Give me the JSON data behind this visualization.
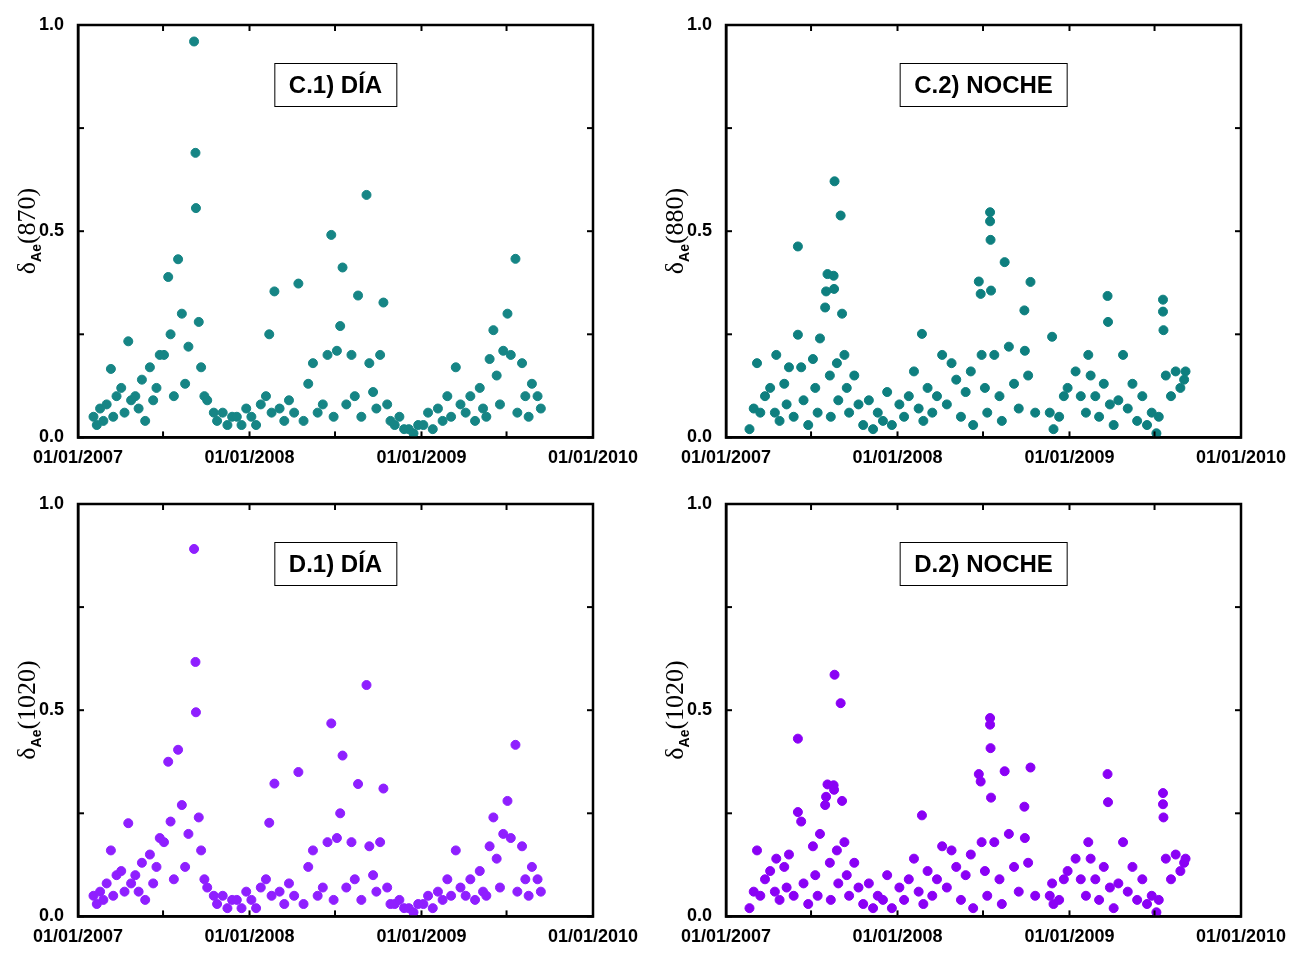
{
  "chart_data": [
    {
      "type": "scatter",
      "title": "C.1) DÍA",
      "ylabel": "δ$_{Ae}$(870)",
      "marker": "circle",
      "xlim": [
        "2007-01-01",
        "2010-01-01"
      ],
      "ylim": [
        0,
        1
      ],
      "xticks": [
        {
          "value": "2007-01-01",
          "label": "01/01/2007"
        },
        {
          "value": "2007-07-01",
          "label": null
        },
        {
          "value": "2008-01-01",
          "label": "01/01/2008"
        },
        {
          "value": "2008-07-01",
          "label": null
        },
        {
          "value": "2009-01-01",
          "label": "01/01/2009"
        },
        {
          "value": "2009-07-01",
          "label": null
        },
        {
          "value": "2010-01-01",
          "label": "01/01/2010"
        }
      ],
      "yticks": [
        {
          "value": 0,
          "label": "0.0"
        },
        {
          "value": 0.25,
          "label": null
        },
        {
          "value": 0.5,
          "label": "0.5"
        },
        {
          "value": 0.75,
          "label": null
        },
        {
          "value": 1,
          "label": "1.0"
        }
      ],
      "series": [
        {
          "color": "#168585",
          "x": [
            "2007-02-03",
            "2007-02-10",
            "2007-02-17",
            "2007-02-24",
            "2007-03-03",
            "2007-03-12",
            "2007-03-17",
            "2007-03-24",
            "2007-04-03",
            "2007-04-10",
            "2007-04-18",
            "2007-04-24",
            "2007-05-03",
            "2007-05-10",
            "2007-05-17",
            "2007-05-24",
            "2007-06-03",
            "2007-06-10",
            "2007-06-17",
            "2007-06-24",
            "2007-07-03",
            "2007-07-12",
            "2007-07-17",
            "2007-07-24",
            "2007-08-02",
            "2007-08-10",
            "2007-08-17",
            "2007-08-24",
            "2007-09-05",
            "2007-09-08",
            "2007-09-09",
            "2007-09-15",
            "2007-09-20",
            "2007-09-27",
            "2007-10-03",
            "2007-10-17",
            "2007-10-24",
            "2007-11-05",
            "2007-11-15",
            "2007-11-25",
            "2007-12-05",
            "2007-12-15",
            "2007-12-25",
            "2008-01-05",
            "2008-01-15",
            "2008-01-25",
            "2008-02-05",
            "2008-02-12",
            "2008-02-17",
            "2008-02-23",
            "2008-03-05",
            "2008-03-15",
            "2008-03-25",
            "2008-04-05",
            "2008-04-14",
            "2008-04-25",
            "2008-05-05",
            "2008-05-15",
            "2008-05-25",
            "2008-06-05",
            "2008-06-15",
            "2008-06-23",
            "2008-06-28",
            "2008-07-05",
            "2008-07-12",
            "2008-07-17",
            "2008-07-25",
            "2008-08-05",
            "2008-08-12",
            "2008-08-19",
            "2008-08-26",
            "2008-09-06",
            "2008-09-12",
            "2008-09-20",
            "2008-09-27",
            "2008-10-05",
            "2008-10-12",
            "2008-10-20",
            "2008-10-27",
            "2008-11-05",
            "2008-11-15",
            "2008-11-25",
            "2008-12-05",
            "2008-12-15",
            "2008-12-25",
            "2009-01-05",
            "2009-01-15",
            "2009-01-25",
            "2009-02-05",
            "2009-02-15",
            "2009-02-25",
            "2009-03-05",
            "2009-03-15",
            "2009-03-25",
            "2009-04-05",
            "2009-04-15",
            "2009-04-25",
            "2009-05-05",
            "2009-05-12",
            "2009-05-19",
            "2009-05-26",
            "2009-06-03",
            "2009-06-10",
            "2009-06-17",
            "2009-06-24",
            "2009-07-03",
            "2009-07-10",
            "2009-07-20",
            "2009-07-24",
            "2009-08-03",
            "2009-08-10",
            "2009-08-17",
            "2009-08-24",
            "2009-09-05",
            "2009-09-12"
          ],
          "values": [
            0.05,
            0.03,
            0.07,
            0.04,
            0.08,
            0.166,
            0.05,
            0.1,
            0.12,
            0.06,
            0.233,
            0.09,
            0.1,
            0.07,
            0.14,
            0.04,
            0.17,
            0.09,
            0.12,
            0.2,
            0.2,
            0.389,
            0.25,
            0.1,
            0.432,
            0.3,
            0.13,
            0.22,
            0.96,
            0.69,
            0.556,
            0.28,
            0.17,
            0.1,
            0.09,
            0.06,
            0.04,
            0.06,
            0.03,
            0.05,
            0.05,
            0.03,
            0.07,
            0.05,
            0.03,
            0.08,
            0.1,
            0.25,
            0.06,
            0.354,
            0.07,
            0.04,
            0.09,
            0.06,
            0.373,
            0.04,
            0.13,
            0.18,
            0.06,
            0.08,
            0.2,
            0.491,
            0.05,
            0.21,
            0.27,
            0.412,
            0.08,
            0.2,
            0.1,
            0.344,
            0.05,
            0.588,
            0.18,
            0.11,
            0.07,
            0.2,
            0.327,
            0.08,
            0.04,
            0.03,
            0.05,
            0.02,
            0.02,
            0.01,
            0.03,
            0.03,
            0.06,
            0.02,
            0.07,
            0.04,
            0.1,
            0.05,
            0.17,
            0.08,
            0.06,
            0.1,
            0.04,
            0.12,
            0.07,
            0.05,
            0.19,
            0.26,
            0.15,
            0.08,
            0.21,
            0.3,
            0.2,
            0.433,
            0.06,
            0.18,
            0.1,
            0.05,
            0.13,
            0.1,
            0.07
          ]
        }
      ]
    },
    {
      "type": "scatter",
      "title": "C.2) NOCHE",
      "ylabel": "δ$_{Ae}$(880)",
      "marker": "circle",
      "xlim": [
        "2007-01-01",
        "2010-01-01"
      ],
      "ylim": [
        0,
        1
      ],
      "xticks": [
        {
          "value": "2007-01-01",
          "label": "01/01/2007"
        },
        {
          "value": "2007-07-01",
          "label": null
        },
        {
          "value": "2008-01-01",
          "label": "01/01/2008"
        },
        {
          "value": "2008-07-01",
          "label": null
        },
        {
          "value": "2009-01-01",
          "label": "01/01/2009"
        },
        {
          "value": "2009-07-01",
          "label": null
        },
        {
          "value": "2010-01-01",
          "label": "01/01/2010"
        }
      ],
      "yticks": [
        {
          "value": 0,
          "label": "0.0"
        },
        {
          "value": 0.25,
          "label": null
        },
        {
          "value": 0.5,
          "label": "0.5"
        },
        {
          "value": 0.75,
          "label": null
        },
        {
          "value": 1,
          "label": "1.0"
        }
      ],
      "series": [
        {
          "color": "#0e7f7f",
          "x": [
            "2007-02-20",
            "2007-03-01",
            "2007-03-08",
            "2007-03-15",
            "2007-03-25",
            "2007-04-05",
            "2007-04-15",
            "2007-04-18",
            "2007-04-25",
            "2007-05-05",
            "2007-05-10",
            "2007-05-15",
            "2007-05-25",
            "2007-06-03",
            "2007-06-03",
            "2007-06-10",
            "2007-06-15",
            "2007-06-25",
            "2007-07-05",
            "2007-07-10",
            "2007-07-15",
            "2007-07-20",
            "2007-07-31",
            "2007-08-02",
            "2007-08-05",
            "2007-08-10",
            "2007-08-12",
            "2007-08-18",
            "2007-08-19",
            "2007-08-20",
            "2007-08-25",
            "2007-08-28",
            "2007-09-02",
            "2007-09-05",
            "2007-09-10",
            "2007-09-15",
            "2007-09-20",
            "2007-10-01",
            "2007-10-10",
            "2007-10-20",
            "2007-11-01",
            "2007-11-10",
            "2007-11-20",
            "2007-12-01",
            "2007-12-10",
            "2007-12-20",
            "2008-01-05",
            "2008-01-15",
            "2008-01-25",
            "2008-02-05",
            "2008-02-15",
            "2008-02-22",
            "2008-02-25",
            "2008-03-05",
            "2008-03-15",
            "2008-03-25",
            "2008-04-05",
            "2008-04-15",
            "2008-04-25",
            "2008-05-05",
            "2008-05-15",
            "2008-05-25",
            "2008-06-05",
            "2008-06-10",
            "2008-06-22",
            "2008-06-26",
            "2008-06-28",
            "2008-07-05",
            "2008-07-10",
            "2008-07-16",
            "2008-07-16",
            "2008-07-17",
            "2008-07-18",
            "2008-07-25",
            "2008-08-05",
            "2008-08-10",
            "2008-08-16",
            "2008-08-25",
            "2008-09-05",
            "2008-09-15",
            "2008-09-27",
            "2008-09-28",
            "2008-10-05",
            "2008-10-10",
            "2008-10-20",
            "2008-11-20",
            "2008-11-25",
            "2008-11-28",
            "2008-12-10",
            "2008-12-20",
            "2008-12-28",
            "2009-01-14",
            "2009-01-25",
            "2009-02-05",
            "2009-02-10",
            "2009-02-15",
            "2009-02-25",
            "2009-03-05",
            "2009-03-15",
            "2009-03-23",
            "2009-03-24",
            "2009-03-28",
            "2009-04-05",
            "2009-04-15",
            "2009-04-25",
            "2009-05-05",
            "2009-05-15",
            "2009-05-25",
            "2009-06-05",
            "2009-06-15",
            "2009-06-25",
            "2009-07-05",
            "2009-07-10",
            "2009-07-19",
            "2009-07-19",
            "2009-07-20",
            "2009-07-25",
            "2009-08-05",
            "2009-08-15",
            "2009-08-25",
            "2009-09-02",
            "2009-09-05"
          ],
          "values": [
            0.02,
            0.07,
            0.18,
            0.06,
            0.1,
            0.12,
            0.06,
            0.2,
            0.04,
            0.13,
            0.08,
            0.17,
            0.05,
            0.463,
            0.249,
            0.17,
            0.09,
            0.03,
            0.19,
            0.12,
            0.06,
            0.24,
            0.315,
            0.354,
            0.396,
            0.15,
            0.05,
            0.392,
            0.36,
            0.621,
            0.18,
            0.09,
            0.538,
            0.3,
            0.2,
            0.12,
            0.06,
            0.15,
            0.08,
            0.03,
            0.09,
            0.02,
            0.06,
            0.04,
            0.11,
            0.03,
            0.08,
            0.05,
            0.1,
            0.16,
            0.07,
            0.251,
            0.04,
            0.12,
            0.06,
            0.1,
            0.2,
            0.08,
            0.18,
            0.14,
            0.05,
            0.11,
            0.16,
            0.03,
            0.378,
            0.348,
            0.2,
            0.12,
            0.06,
            0.546,
            0.524,
            0.479,
            0.356,
            0.2,
            0.1,
            0.04,
            0.425,
            0.22,
            0.13,
            0.07,
            0.308,
            0.21,
            0.15,
            0.377,
            0.06,
            0.06,
            0.244,
            0.02,
            0.05,
            0.1,
            0.12,
            0.16,
            0.1,
            0.06,
            0.2,
            0.15,
            0.1,
            0.05,
            0.13,
            0.343,
            0.28,
            0.08,
            0.03,
            0.09,
            0.2,
            0.07,
            0.13,
            0.04,
            0.1,
            0.03,
            0.06,
            0.01,
            0.05,
            0.334,
            0.305,
            0.26,
            0.15,
            0.1,
            0.16,
            0.12,
            0.14,
            0.16
          ]
        }
      ]
    },
    {
      "type": "scatter",
      "title": "D.1) DÍA",
      "ylabel": "δ$_{Ae}$(1020)",
      "marker": "circle",
      "xlim": [
        "2007-01-01",
        "2010-01-01"
      ],
      "ylim": [
        0,
        1
      ],
      "xticks": [
        {
          "value": "2007-01-01",
          "label": "01/01/2007"
        },
        {
          "value": "2007-07-01",
          "label": null
        },
        {
          "value": "2008-01-01",
          "label": "01/01/2008"
        },
        {
          "value": "2008-07-01",
          "label": null
        },
        {
          "value": "2009-01-01",
          "label": "01/01/2009"
        },
        {
          "value": "2009-07-01",
          "label": null
        },
        {
          "value": "2010-01-01",
          "label": "01/01/2010"
        }
      ],
      "yticks": [
        {
          "value": 0,
          "label": "0.0"
        },
        {
          "value": 0.25,
          "label": null
        },
        {
          "value": 0.5,
          "label": "0.5"
        },
        {
          "value": 0.75,
          "label": null
        },
        {
          "value": 1,
          "label": "1.0"
        }
      ],
      "series": [
        {
          "color": "#8f1fff",
          "x": [
            "2007-02-03",
            "2007-02-10",
            "2007-02-17",
            "2007-02-24",
            "2007-03-03",
            "2007-03-12",
            "2007-03-17",
            "2007-03-24",
            "2007-04-03",
            "2007-04-10",
            "2007-04-18",
            "2007-04-24",
            "2007-05-03",
            "2007-05-10",
            "2007-05-17",
            "2007-05-24",
            "2007-06-03",
            "2007-06-10",
            "2007-06-17",
            "2007-06-24",
            "2007-07-03",
            "2007-07-12",
            "2007-07-17",
            "2007-07-24",
            "2007-08-02",
            "2007-08-10",
            "2007-08-17",
            "2007-08-24",
            "2007-09-05",
            "2007-09-08",
            "2007-09-09",
            "2007-09-15",
            "2007-09-20",
            "2007-09-27",
            "2007-10-03",
            "2007-10-17",
            "2007-10-24",
            "2007-11-05",
            "2007-11-15",
            "2007-11-25",
            "2007-12-05",
            "2007-12-15",
            "2007-12-25",
            "2008-01-05",
            "2008-01-15",
            "2008-01-25",
            "2008-02-05",
            "2008-02-12",
            "2008-02-17",
            "2008-02-23",
            "2008-03-05",
            "2008-03-15",
            "2008-03-25",
            "2008-04-05",
            "2008-04-14",
            "2008-04-25",
            "2008-05-05",
            "2008-05-15",
            "2008-05-25",
            "2008-06-05",
            "2008-06-15",
            "2008-06-23",
            "2008-06-28",
            "2008-07-05",
            "2008-07-12",
            "2008-07-17",
            "2008-07-25",
            "2008-08-05",
            "2008-08-12",
            "2008-08-19",
            "2008-08-26",
            "2008-09-06",
            "2008-09-12",
            "2008-09-20",
            "2008-09-27",
            "2008-10-05",
            "2008-10-12",
            "2008-10-20",
            "2008-10-27",
            "2008-11-05",
            "2008-11-15",
            "2008-11-25",
            "2008-12-05",
            "2008-12-15",
            "2008-12-25",
            "2009-01-05",
            "2009-01-15",
            "2009-01-25",
            "2009-02-05",
            "2009-02-15",
            "2009-02-25",
            "2009-03-05",
            "2009-03-15",
            "2009-03-25",
            "2009-04-05",
            "2009-04-15",
            "2009-04-25",
            "2009-05-05",
            "2009-05-12",
            "2009-05-19",
            "2009-05-26",
            "2009-06-03",
            "2009-06-10",
            "2009-06-17",
            "2009-06-24",
            "2009-07-03",
            "2009-07-10",
            "2009-07-20",
            "2009-07-24",
            "2009-08-03",
            "2009-08-10",
            "2009-08-17",
            "2009-08-24",
            "2009-09-05",
            "2009-09-12"
          ],
          "values": [
            0.05,
            0.03,
            0.06,
            0.04,
            0.08,
            0.16,
            0.05,
            0.1,
            0.11,
            0.06,
            0.226,
            0.08,
            0.1,
            0.06,
            0.13,
            0.04,
            0.15,
            0.08,
            0.12,
            0.19,
            0.18,
            0.375,
            0.23,
            0.09,
            0.404,
            0.27,
            0.12,
            0.2,
            0.891,
            0.617,
            0.495,
            0.24,
            0.16,
            0.09,
            0.07,
            0.05,
            0.03,
            0.05,
            0.02,
            0.04,
            0.04,
            0.02,
            0.06,
            0.04,
            0.02,
            0.07,
            0.09,
            0.227,
            0.05,
            0.322,
            0.06,
            0.03,
            0.08,
            0.05,
            0.35,
            0.03,
            0.12,
            0.16,
            0.05,
            0.07,
            0.18,
            0.468,
            0.04,
            0.19,
            0.25,
            0.39,
            0.07,
            0.18,
            0.09,
            0.321,
            0.04,
            0.561,
            0.17,
            0.1,
            0.06,
            0.18,
            0.31,
            0.07,
            0.03,
            0.03,
            0.04,
            0.02,
            0.02,
            0.01,
            0.03,
            0.03,
            0.05,
            0.02,
            0.06,
            0.04,
            0.09,
            0.05,
            0.16,
            0.07,
            0.05,
            0.09,
            0.04,
            0.11,
            0.06,
            0.05,
            0.17,
            0.24,
            0.14,
            0.07,
            0.2,
            0.28,
            0.19,
            0.416,
            0.06,
            0.17,
            0.09,
            0.05,
            0.12,
            0.09,
            0.06
          ]
        }
      ]
    },
    {
      "type": "scatter",
      "title": "D.2) NOCHE",
      "ylabel": "δ$_{Ae}$(1020)",
      "marker": "circle",
      "xlim": [
        "2007-01-01",
        "2010-01-01"
      ],
      "ylim": [
        0,
        1
      ],
      "xticks": [
        {
          "value": "2007-01-01",
          "label": "01/01/2007"
        },
        {
          "value": "2007-07-01",
          "label": null
        },
        {
          "value": "2008-01-01",
          "label": "01/01/2008"
        },
        {
          "value": "2008-07-01",
          "label": null
        },
        {
          "value": "2009-01-01",
          "label": "01/01/2009"
        },
        {
          "value": "2009-07-01",
          "label": null
        },
        {
          "value": "2010-01-01",
          "label": "01/01/2010"
        }
      ],
      "yticks": [
        {
          "value": 0,
          "label": "0.0"
        },
        {
          "value": 0.25,
          "label": null
        },
        {
          "value": 0.5,
          "label": "0.5"
        },
        {
          "value": 0.75,
          "label": null
        },
        {
          "value": 1,
          "label": "1.0"
        }
      ],
      "series": [
        {
          "color": "#8a00f5",
          "x": [
            "2007-02-20",
            "2007-03-01",
            "2007-03-08",
            "2007-03-15",
            "2007-03-25",
            "2007-04-05",
            "2007-04-15",
            "2007-04-18",
            "2007-04-25",
            "2007-05-05",
            "2007-05-10",
            "2007-05-15",
            "2007-05-25",
            "2007-06-03",
            "2007-06-03",
            "2007-06-10",
            "2007-06-15",
            "2007-06-25",
            "2007-07-05",
            "2007-07-10",
            "2007-07-15",
            "2007-07-20",
            "2007-07-31",
            "2007-08-02",
            "2007-08-05",
            "2007-08-10",
            "2007-08-12",
            "2007-08-18",
            "2007-08-19",
            "2007-08-20",
            "2007-08-25",
            "2007-08-28",
            "2007-09-02",
            "2007-09-05",
            "2007-09-10",
            "2007-09-15",
            "2007-09-20",
            "2007-10-01",
            "2007-10-10",
            "2007-10-20",
            "2007-11-01",
            "2007-11-10",
            "2007-11-20",
            "2007-12-01",
            "2007-12-10",
            "2007-12-20",
            "2008-01-05",
            "2008-01-15",
            "2008-01-25",
            "2008-02-05",
            "2008-02-15",
            "2008-02-22",
            "2008-02-25",
            "2008-03-05",
            "2008-03-15",
            "2008-03-25",
            "2008-04-05",
            "2008-04-15",
            "2008-04-25",
            "2008-05-05",
            "2008-05-15",
            "2008-05-25",
            "2008-06-05",
            "2008-06-10",
            "2008-06-22",
            "2008-06-26",
            "2008-06-28",
            "2008-07-05",
            "2008-07-10",
            "2008-07-16",
            "2008-07-16",
            "2008-07-17",
            "2008-07-18",
            "2008-07-25",
            "2008-08-05",
            "2008-08-10",
            "2008-08-16",
            "2008-08-25",
            "2008-09-05",
            "2008-09-15",
            "2008-09-27",
            "2008-09-28",
            "2008-10-05",
            "2008-10-10",
            "2008-10-20",
            "2008-11-20",
            "2008-11-25",
            "2008-11-28",
            "2008-12-10",
            "2008-12-20",
            "2008-12-28",
            "2009-01-14",
            "2009-01-25",
            "2009-02-05",
            "2009-02-10",
            "2009-02-15",
            "2009-02-25",
            "2009-03-05",
            "2009-03-15",
            "2009-03-23",
            "2009-03-24",
            "2009-03-28",
            "2009-04-05",
            "2009-04-15",
            "2009-04-25",
            "2009-05-05",
            "2009-05-15",
            "2009-05-25",
            "2009-06-05",
            "2009-06-15",
            "2009-06-25",
            "2009-07-05",
            "2009-07-10",
            "2009-07-19",
            "2009-07-19",
            "2009-07-20",
            "2009-07-25",
            "2009-08-05",
            "2009-08-15",
            "2009-08-25",
            "2009-09-02",
            "2009-09-05"
          ],
          "values": [
            0.02,
            0.06,
            0.16,
            0.05,
            0.09,
            0.11,
            0.06,
            0.14,
            0.04,
            0.12,
            0.07,
            0.15,
            0.05,
            0.431,
            0.253,
            0.23,
            0.08,
            0.03,
            0.17,
            0.1,
            0.05,
            0.2,
            0.27,
            0.29,
            0.32,
            0.13,
            0.04,
            0.318,
            0.307,
            0.586,
            0.16,
            0.08,
            0.517,
            0.28,
            0.18,
            0.1,
            0.05,
            0.13,
            0.07,
            0.03,
            0.08,
            0.02,
            0.05,
            0.04,
            0.1,
            0.02,
            0.07,
            0.04,
            0.09,
            0.14,
            0.06,
            0.245,
            0.03,
            0.11,
            0.05,
            0.09,
            0.17,
            0.07,
            0.16,
            0.12,
            0.04,
            0.1,
            0.15,
            0.02,
            0.345,
            0.327,
            0.18,
            0.11,
            0.05,
            0.481,
            0.465,
            0.408,
            0.288,
            0.18,
            0.09,
            0.03,
            0.352,
            0.2,
            0.12,
            0.06,
            0.266,
            0.19,
            0.13,
            0.361,
            0.05,
            0.05,
            0.08,
            0.03,
            0.04,
            0.09,
            0.11,
            0.14,
            0.09,
            0.05,
            0.18,
            0.14,
            0.09,
            0.04,
            0.12,
            0.345,
            0.277,
            0.07,
            0.02,
            0.08,
            0.18,
            0.06,
            0.12,
            0.04,
            0.09,
            0.03,
            0.05,
            0.01,
            0.04,
            0.299,
            0.272,
            0.24,
            0.14,
            0.09,
            0.15,
            0.11,
            0.13,
            0.14
          ]
        }
      ]
    }
  ]
}
